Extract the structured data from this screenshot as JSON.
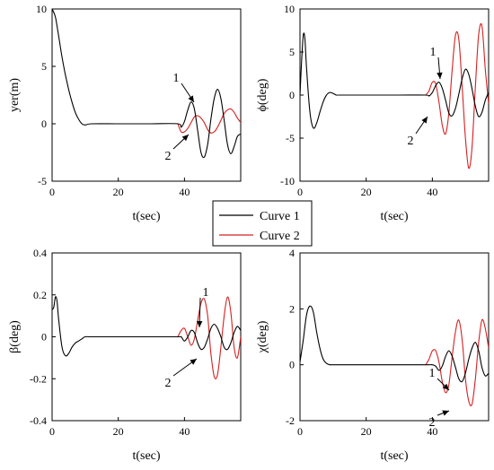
{
  "chart_data": [
    {
      "type": "line",
      "xlabel": "t(sec)",
      "ylabel": "yer(m)",
      "xlim": [
        0,
        57
      ],
      "ylim": [
        -5,
        10
      ],
      "xticks": [
        "0",
        "20",
        "40"
      ],
      "yticks": [
        "-5",
        "0",
        "5",
        "10"
      ],
      "series": [
        {
          "name": "Curve 1",
          "color": "#000000",
          "x": [
            0,
            1,
            2,
            3,
            4,
            5,
            6,
            7,
            8,
            9,
            10,
            12,
            20,
            30,
            38,
            39,
            40,
            41,
            42,
            43,
            44,
            45,
            46,
            47,
            48,
            49,
            50,
            51,
            52,
            53,
            54,
            55,
            56,
            57
          ],
          "y": [
            10,
            9.3,
            7.6,
            5.8,
            4.3,
            3,
            1.9,
            1.0,
            0.4,
            0,
            -0.1,
            0,
            0,
            0,
            0,
            -0.3,
            0.2,
            1.2,
            1.9,
            1.3,
            -0.6,
            -2.5,
            -2.9,
            -1.8,
            0.4,
            2.2,
            3.0,
            2.2,
            0.3,
            -1.8,
            -2.6,
            -2.0,
            -1.1,
            -0.9
          ]
        },
        {
          "name": "Curve 2",
          "color": "#d62020",
          "x": [
            38,
            39,
            40,
            41,
            42,
            43,
            44,
            45,
            46,
            47,
            48,
            49,
            50,
            51,
            52,
            53,
            54,
            55,
            56,
            57
          ],
          "y": [
            0,
            -0.7,
            -0.7,
            -0.4,
            0.1,
            0.6,
            0.7,
            0.5,
            0.1,
            -0.5,
            -0.8,
            -0.7,
            -0.3,
            0.3,
            0.9,
            1.2,
            1.3,
            1.0,
            0.5,
            0.1
          ]
        }
      ],
      "annotations": [
        "1",
        "2"
      ]
    },
    {
      "type": "line",
      "xlabel": "t(sec)",
      "ylabel": "ϕ(deg)",
      "xlim": [
        0,
        57
      ],
      "ylim": [
        -10,
        10
      ],
      "xticks": [
        "0",
        "20",
        "40"
      ],
      "yticks": [
        "-10",
        "-5",
        "0",
        "5",
        "10"
      ],
      "series": [
        {
          "name": "Curve 1",
          "color": "#000000",
          "x": [
            0,
            0.5,
            1,
            1.5,
            2,
            3,
            4,
            5,
            6,
            7,
            8,
            9,
            10,
            11,
            12,
            20,
            30,
            38,
            39,
            40,
            41,
            42,
            43,
            44,
            45,
            46,
            47,
            48,
            49,
            50,
            51,
            52,
            53,
            54,
            55,
            56,
            57
          ],
          "y": [
            0,
            4,
            7,
            6.5,
            3,
            -2,
            -3.8,
            -3.3,
            -2,
            -0.8,
            0,
            0.3,
            0.2,
            0,
            0,
            0,
            0,
            0,
            -0.1,
            0.3,
            1.1,
            1.5,
            0.8,
            -0.6,
            -2.1,
            -2.4,
            -1.5,
            0.1,
            1.9,
            3.0,
            2.4,
            0.7,
            -1.3,
            -2.5,
            -2.0,
            -0.6,
            0.3
          ]
        },
        {
          "name": "Curve 2",
          "color": "#d62020",
          "x": [
            38,
            39,
            40,
            41,
            42,
            43,
            44,
            45,
            46,
            47,
            48,
            49,
            50,
            51,
            52,
            53,
            54,
            55,
            56,
            57
          ],
          "y": [
            0,
            0.5,
            1.5,
            1.3,
            -0.8,
            -3.5,
            -4.5,
            -2.0,
            3.0,
            7.0,
            6.5,
            1.0,
            -5.0,
            -8.5,
            -6.0,
            1.0,
            7.0,
            8.0,
            3.0,
            -1.0
          ]
        }
      ],
      "annotations": [
        "1",
        "2"
      ]
    },
    {
      "type": "line",
      "xlabel": "t(sec)",
      "ylabel": "β(deg)",
      "xlim": [
        0,
        57
      ],
      "ylim": [
        -0.4,
        0.4
      ],
      "xticks": [
        "0",
        "20",
        "40"
      ],
      "yticks": [
        "-0.4",
        "-0.2",
        "0",
        "0.2",
        "0.4"
      ],
      "series": [
        {
          "name": "Curve 1",
          "color": "#000000",
          "x": [
            0,
            0.5,
            1,
            1.5,
            2,
            3,
            4,
            5,
            6,
            7,
            8,
            9,
            10,
            12,
            20,
            30,
            38,
            39,
            40,
            41,
            42,
            43,
            44,
            45,
            46,
            47,
            48,
            49,
            50,
            51,
            52,
            53,
            54,
            55,
            56,
            57
          ],
          "y": [
            0.13,
            0.14,
            0.19,
            0.17,
            0.08,
            -0.05,
            -0.09,
            -0.08,
            -0.05,
            -0.03,
            -0.02,
            -0.01,
            0,
            0,
            0,
            0,
            0,
            0,
            -0.02,
            0.0,
            0.03,
            0.02,
            -0.03,
            -0.06,
            -0.05,
            -0.01,
            0.04,
            0.06,
            0.04,
            0.0,
            -0.05,
            -0.06,
            -0.03,
            0.02,
            0.05,
            0.03
          ]
        },
        {
          "name": "Curve 2",
          "color": "#d62020",
          "x": [
            38,
            39,
            40,
            41,
            42,
            43,
            44,
            45,
            46,
            47,
            48,
            49,
            50,
            51,
            52,
            53,
            54,
            55,
            56,
            57
          ],
          "y": [
            0,
            0.03,
            0.04,
            0.0,
            -0.04,
            -0.01,
            0.08,
            0.16,
            0.18,
            0.1,
            -0.08,
            -0.19,
            -0.18,
            -0.05,
            0.1,
            0.19,
            0.12,
            -0.05,
            -0.1,
            0.0
          ]
        }
      ],
      "annotations": [
        "1",
        "2"
      ]
    },
    {
      "type": "line",
      "xlabel": "t(sec)",
      "ylabel": "χ(deg)",
      "xlim": [
        0,
        57
      ],
      "ylim": [
        -2,
        4
      ],
      "xticks": [
        "0",
        "20",
        "40"
      ],
      "yticks": [
        "-2",
        "0",
        "2",
        "4"
      ],
      "series": [
        {
          "name": "Curve 1",
          "color": "#000000",
          "x": [
            0,
            1,
            2,
            3,
            4,
            5,
            6,
            7,
            8,
            9,
            10,
            20,
            30,
            38,
            39,
            40,
            41,
            42,
            43,
            44,
            45,
            46,
            47,
            48,
            49,
            50,
            51,
            52,
            53,
            54,
            55,
            56,
            57
          ],
          "y": [
            0.1,
            0.9,
            1.8,
            2.1,
            1.9,
            1.2,
            0.6,
            0.2,
            0.05,
            0,
            0,
            0,
            0,
            0,
            0,
            0,
            -0.05,
            -0.2,
            -0.05,
            0.3,
            0.5,
            0.3,
            -0.1,
            -0.5,
            -0.6,
            -0.3,
            0.2,
            0.6,
            0.8,
            0.5,
            -0.1,
            -0.4,
            -0.3
          ]
        },
        {
          "name": "Curve 2",
          "color": "#d62020",
          "x": [
            38,
            39,
            40,
            41,
            42,
            43,
            44,
            45,
            46,
            47,
            48,
            49,
            50,
            51,
            52,
            53,
            54,
            55,
            56,
            57
          ],
          "y": [
            0,
            0.2,
            0.5,
            0.5,
            0.1,
            -0.6,
            -1.0,
            -0.7,
            0.3,
            1.2,
            1.6,
            0.9,
            -0.5,
            -1.3,
            -1.4,
            -0.5,
            0.8,
            1.6,
            1.3,
            0.6
          ]
        }
      ],
      "annotations": [
        "1",
        "2"
      ]
    }
  ],
  "legend": {
    "entries": [
      {
        "label": "Curve 1",
        "color": "#000000"
      },
      {
        "label": "Curve 2",
        "color": "#d62020"
      }
    ]
  }
}
